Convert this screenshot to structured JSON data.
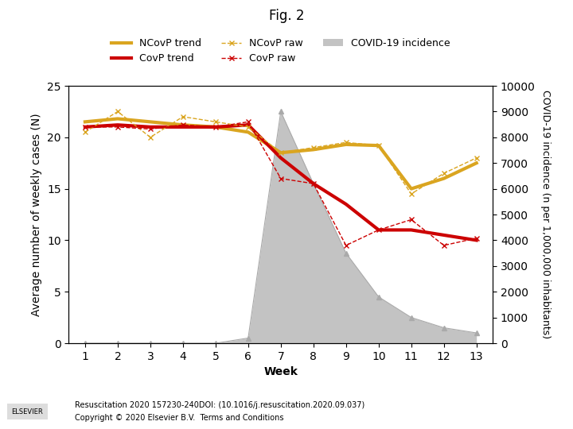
{
  "chart_data": {
    "type": "line",
    "title": "Fig. 2",
    "x_label": "Week",
    "y_label": "Average number of weekly cases (N)",
    "y2_label": "COVID-19 incidence (n per 1,000,000 inhabitants)",
    "x": [
      1,
      2,
      3,
      4,
      5,
      6,
      7,
      8,
      9,
      10,
      11,
      12,
      13
    ],
    "series": [
      {
        "name": "NCovP trend",
        "type": "line",
        "color": "#DAA520",
        "line_style": "solid",
        "values": [
          21.5,
          21.8,
          21.5,
          21.2,
          21.0,
          20.5,
          18.5,
          18.8,
          19.3,
          19.2,
          15.0,
          16.0,
          17.5
        ]
      },
      {
        "name": "CovP trend",
        "type": "line",
        "color": "#CC0000",
        "line_style": "solid",
        "values": [
          21.0,
          21.2,
          21.0,
          21.0,
          21.0,
          21.2,
          18.0,
          15.5,
          13.5,
          11.0,
          11.0,
          10.5,
          10.0
        ]
      },
      {
        "name": "NCovP raw",
        "type": "line",
        "color": "#DAA520",
        "line_style": "dashed",
        "marker": "x",
        "values": [
          20.5,
          22.5,
          20.0,
          22.0,
          21.5,
          21.0,
          18.5,
          19.0,
          19.5,
          19.2,
          14.5,
          16.5,
          18.0
        ]
      },
      {
        "name": "CovP raw",
        "type": "line",
        "color": "#CC0000",
        "line_style": "dashed",
        "marker": "x",
        "values": [
          21.0,
          21.0,
          20.8,
          21.2,
          21.0,
          21.5,
          16.0,
          15.5,
          9.5,
          11.0,
          12.0,
          9.5,
          10.2
        ]
      },
      {
        "name": "COVID-19 incidence",
        "type": "area",
        "axis": "y2",
        "color": "#AAAAAA",
        "marker": "triangle",
        "values": [
          0,
          0,
          0,
          0,
          0,
          200,
          9000,
          6200,
          3500,
          1800,
          1000,
          600,
          400
        ]
      }
    ],
    "xlim": [
      0.5,
      13.5
    ],
    "xticks": [
      1,
      2,
      3,
      4,
      5,
      6,
      7,
      8,
      9,
      10,
      11,
      12,
      13
    ],
    "ylim": [
      0,
      25
    ],
    "yticks": [
      0,
      5,
      10,
      15,
      20,
      25
    ],
    "y2lim": [
      0,
      10000
    ],
    "y2ticks": [
      0,
      1000,
      2000,
      3000,
      4000,
      5000,
      6000,
      7000,
      8000,
      9000,
      10000
    ],
    "legend": "upper center",
    "grid": false,
    "annotations": [
      "Resuscitation 2020 157230-240DOI: (10.1016/j.resuscitation.2020.09.037)",
      "Copyright © 2020 Elsevier B.V.  Terms and Conditions",
      "ELSEVIER"
    ]
  }
}
